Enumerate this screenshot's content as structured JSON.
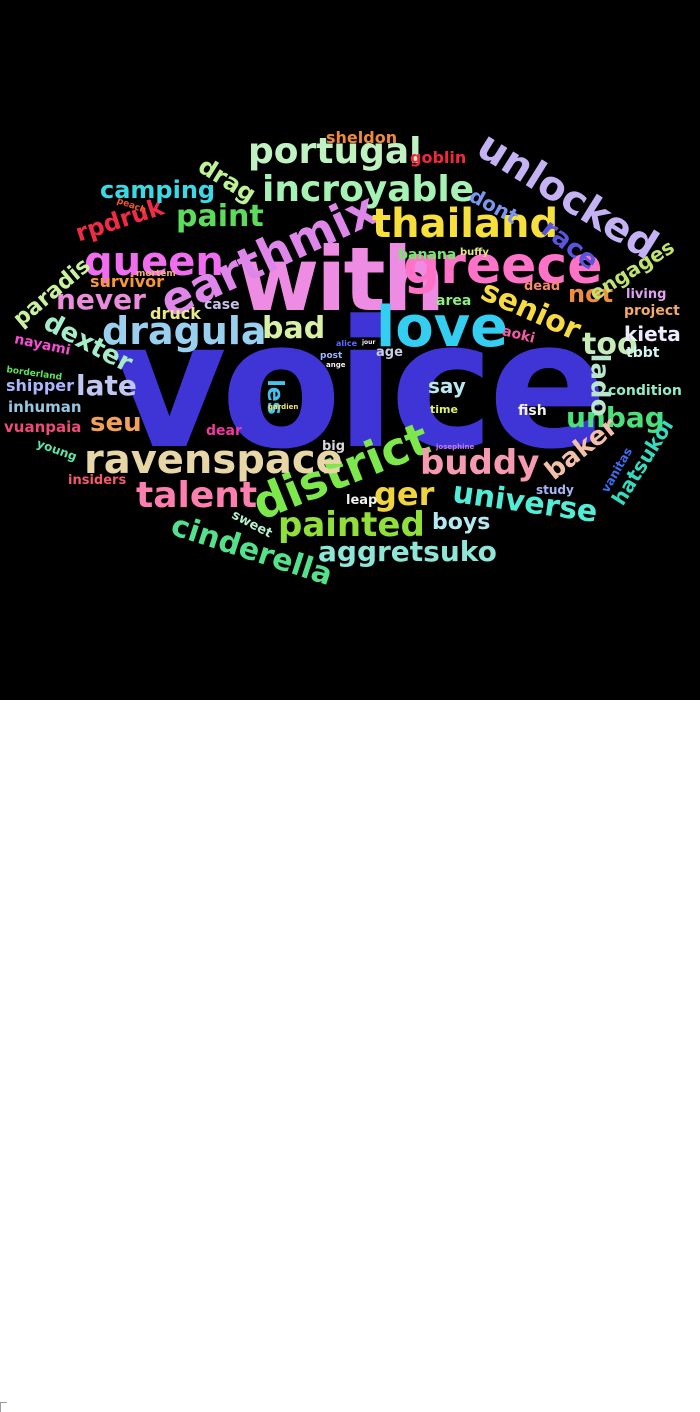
{
  "words": [
    {
      "text": "voice",
      "color": "#3f35d6"
    },
    {
      "text": "with",
      "color": "#ee8ce4"
    },
    {
      "text": "love",
      "color": "#33cef0"
    },
    {
      "text": "greece",
      "color": "#fe73c8"
    },
    {
      "text": "earthmix",
      "color": "#df86ea"
    },
    {
      "text": "district",
      "color": "#7de84b"
    },
    {
      "text": "ravenspace",
      "color": "#e8d7a6"
    },
    {
      "text": "thailand",
      "color": "#f7df3c"
    },
    {
      "text": "unlocked",
      "color": "#c5b2f4"
    },
    {
      "text": "dragula",
      "color": "#9ad0ef"
    },
    {
      "text": "incroyable",
      "color": "#a5f2b4"
    },
    {
      "text": "queen",
      "color": "#f06df0"
    },
    {
      "text": "portugal",
      "color": "#c0f2c1"
    },
    {
      "text": "talent",
      "color": "#ff7eb0"
    },
    {
      "text": "buddy",
      "color": "#f59ab1"
    },
    {
      "text": "painted",
      "color": "#90df3a"
    },
    {
      "text": "universe",
      "color": "#52edd6"
    },
    {
      "text": "cinderella",
      "color": "#53e18c"
    },
    {
      "text": "aggretsuko",
      "color": "#8ee6d9"
    },
    {
      "text": "senior",
      "color": "#f7db42"
    },
    {
      "text": "paint",
      "color": "#5cdb5c"
    },
    {
      "text": "bad",
      "color": "#d8f1a5"
    },
    {
      "text": "never",
      "color": "#e88cdb"
    },
    {
      "text": "late",
      "color": "#bfc8f3"
    },
    {
      "text": "dexter",
      "color": "#a5edc9"
    },
    {
      "text": "too",
      "color": "#c6ecb8"
    },
    {
      "text": "ger",
      "color": "#f0d43c"
    },
    {
      "text": "unbag",
      "color": "#4ce07a"
    },
    {
      "text": "seu",
      "color": "#f2a05a"
    },
    {
      "text": "baker",
      "color": "#f2c0a9"
    },
    {
      "text": "lado",
      "color": "#b9e7cc"
    },
    {
      "text": "race",
      "color": "#5a55dd"
    },
    {
      "text": "not",
      "color": "#f08d3c"
    },
    {
      "text": "rpdruk",
      "color": "#f02b45"
    },
    {
      "text": "camping",
      "color": "#39d9e6"
    },
    {
      "text": "drag",
      "color": "#bdf297"
    },
    {
      "text": "paradis",
      "color": "#c9f29d"
    },
    {
      "text": "boys",
      "color": "#b6e8f2"
    },
    {
      "text": "engages",
      "color": "#c1e36e"
    },
    {
      "text": "hatsukoi",
      "color": "#36dbbf"
    },
    {
      "text": "kieta",
      "color": "#f0ebfc"
    },
    {
      "text": "dont",
      "color": "#7a96f0"
    },
    {
      "text": "les",
      "color": "#44c1ec"
    },
    {
      "text": "say",
      "color": "#b8e9f2"
    },
    {
      "text": "sheldon",
      "color": "#f08a3a"
    },
    {
      "text": "goblin",
      "color": "#f5273e"
    },
    {
      "text": "survivor",
      "color": "#f79837"
    },
    {
      "text": "druck",
      "color": "#e9e98c"
    },
    {
      "text": "shipper",
      "color": "#a9b6fb"
    },
    {
      "text": "nayami",
      "color": "#f24ed0"
    },
    {
      "text": "inhuman",
      "color": "#98c6e0"
    },
    {
      "text": "vuanpaia",
      "color": "#ed4b7a"
    },
    {
      "text": "banana",
      "color": "#70eb69"
    },
    {
      "text": "dead",
      "color": "#f28a6b"
    },
    {
      "text": "area",
      "color": "#8af27a"
    },
    {
      "text": "case",
      "color": "#c9c0e8"
    },
    {
      "text": "aoki",
      "color": "#f25aa4"
    },
    {
      "text": "age",
      "color": "#c9cde7"
    },
    {
      "text": "tbbt",
      "color": "#d3f5f2"
    },
    {
      "text": "condition",
      "color": "#92eac9"
    },
    {
      "text": "project",
      "color": "#f3aa68"
    },
    {
      "text": "living",
      "color": "#e1a2f2"
    },
    {
      "text": "fish",
      "color": "#f2f2f2"
    },
    {
      "text": "dear",
      "color": "#f238a0"
    },
    {
      "text": "big",
      "color": "#d8d8d8"
    },
    {
      "text": "time",
      "color": "#e2f06a"
    },
    {
      "text": "leap",
      "color": "#f0f0f0"
    },
    {
      "text": "study",
      "color": "#a7b6f5"
    },
    {
      "text": "vanitas",
      "color": "#3d6ef2"
    },
    {
      "text": "young",
      "color": "#5de3a8"
    },
    {
      "text": "insiders",
      "color": "#f25a6a"
    },
    {
      "text": "sweet",
      "color": "#b3efd0"
    },
    {
      "text": "borderland",
      "color": "#61e25a"
    },
    {
      "text": "buffy",
      "color": "#e6e684"
    },
    {
      "text": "peach",
      "color": "#f05a2e"
    },
    {
      "text": "mortem",
      "color": "#f4b37c"
    },
    {
      "text": "post",
      "color": "#9bb7ff"
    },
    {
      "text": "alice",
      "color": "#5b6bff"
    },
    {
      "text": "ange",
      "color": "#f2f2f2"
    },
    {
      "text": "jour",
      "color": "#f2f2f2"
    },
    {
      "text": "gardien",
      "color": "#f2e36b"
    },
    {
      "text": "josephine",
      "color": "#c27aef"
    }
  ]
}
